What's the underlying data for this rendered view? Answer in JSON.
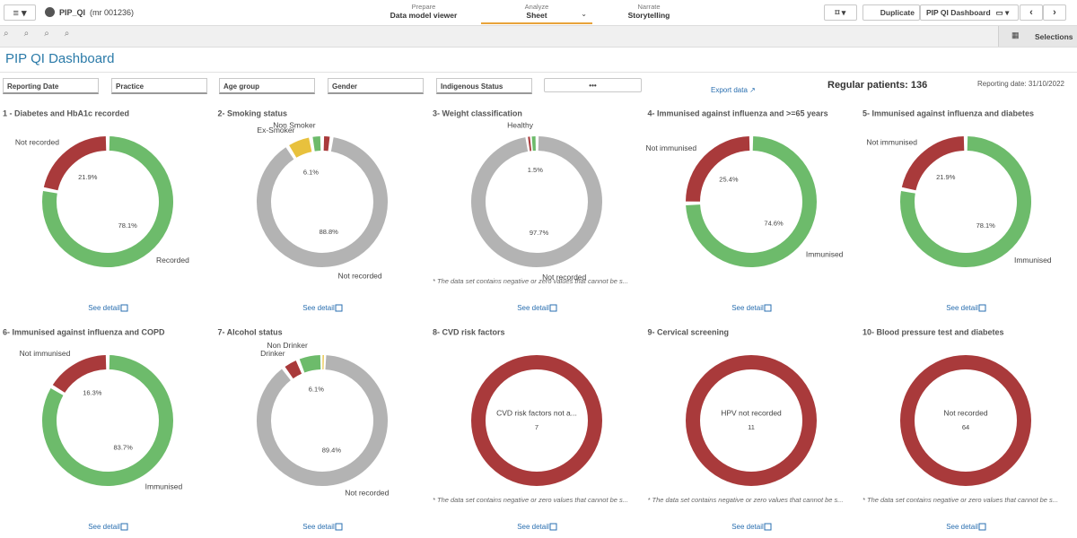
{
  "app": {
    "name": "PIP_QI",
    "id": "(mr 001236)"
  },
  "tabs": [
    {
      "label": "Prepare",
      "item": "Data model viewer"
    },
    {
      "label": "Analyze",
      "item": "Sheet"
    },
    {
      "label": "Narrate",
      "item": "Storytelling"
    }
  ],
  "buttons": {
    "duplicate": "Duplicate",
    "sheet": "PIP QI Dashboard",
    "selections": "Selections"
  },
  "sheet_title": "PIP QI Dashboard",
  "filters": [
    "Reporting Date",
    "Practice",
    "Age group",
    "Gender",
    "Indigenous Status"
  ],
  "more_button": "•••",
  "export": "Export data",
  "patients": "Regular patients: 136",
  "reporting_date": "Reporting date: 31/10/2022",
  "chart_data": [
    {
      "type": "pie",
      "title": "1 - Diabetes and HbA1c recorded",
      "categories": [
        "Recorded",
        "Not recorded"
      ],
      "values": [
        78.1,
        21.9
      ],
      "value_labels": [
        "78.1%",
        "21.9%"
      ],
      "colors": [
        "#6dbb6b",
        "#a93a3b"
      ],
      "link": "See detail"
    },
    {
      "type": "pie",
      "title": "2- Smoking status",
      "categories": [
        null,
        "Not recorded",
        "Ex-Smoker",
        "Non Smoker"
      ],
      "values": [
        2.3,
        88.8,
        6.1,
        2.8
      ],
      "value_labels": [
        null,
        "88.8%",
        "6.1%",
        null
      ],
      "colors": [
        "#a93a3b",
        "#b3b3b3",
        "#e8c13d",
        "#6dbb6b"
      ],
      "link": "See detail"
    },
    {
      "type": "pie",
      "title": "3- Weight classification",
      "categories": [
        "Not recorded",
        null,
        "Healthy"
      ],
      "values": [
        97.7,
        0.8,
        1.5
      ],
      "value_labels": [
        "97.7%",
        null,
        "1.5%"
      ],
      "colors": [
        "#b3b3b3",
        "#a93a3b",
        "#6dbb6b"
      ],
      "link": "See detail",
      "footnote": "* The data set contains negative or zero values that cannot be s..."
    },
    {
      "type": "pie",
      "title": "4- Immunised against influenza and >=65 years",
      "categories": [
        "Immunised",
        "Not immunised"
      ],
      "values": [
        74.6,
        25.4
      ],
      "value_labels": [
        "74.6%",
        "25.4%"
      ],
      "colors": [
        "#6dbb6b",
        "#a93a3b"
      ],
      "link": "See detail"
    },
    {
      "type": "pie",
      "title": "5- Immunised against influenza and diabetes",
      "categories": [
        "Immunised",
        "Not immunised"
      ],
      "values": [
        78.1,
        21.9
      ],
      "value_labels": [
        "78.1%",
        "21.9%"
      ],
      "colors": [
        "#6dbb6b",
        "#a93a3b"
      ],
      "link": "See detail"
    },
    {
      "type": "pie",
      "title": "6- Immunised against influenza and COPD",
      "categories": [
        "Immunised",
        "Not immunised"
      ],
      "values": [
        83.7,
        16.3
      ],
      "value_labels": [
        "83.7%",
        "16.3%"
      ],
      "colors": [
        "#6dbb6b",
        "#a93a3b"
      ],
      "link": "See detail"
    },
    {
      "type": "pie",
      "title": "7- Alcohol status",
      "categories": [
        null,
        "Not recorded",
        "Drinker",
        "Non Drinker"
      ],
      "values": [
        0.5,
        89.4,
        4.0,
        6.1
      ],
      "value_labels": [
        null,
        "89.4%",
        null,
        "6.1%"
      ],
      "colors": [
        "#e8c13d",
        "#b3b3b3",
        "#a93a3b",
        "#6dbb6b"
      ],
      "link": "See detail"
    },
    {
      "type": "pie",
      "title": "8- CVD risk factors",
      "categories": [
        "CVD risk factors not a..."
      ],
      "values": [
        7
      ],
      "colors": [
        "#a93a3b"
      ],
      "link": "See detail",
      "footnote": "* The data set contains negative or zero values that cannot be s..."
    },
    {
      "type": "pie",
      "title": "9- Cervical screening",
      "categories": [
        "HPV not recorded"
      ],
      "values": [
        11
      ],
      "colors": [
        "#a93a3b"
      ],
      "link": "See detail",
      "footnote": "* The data set contains negative or zero values that cannot be s..."
    },
    {
      "type": "pie",
      "title": "10- Blood pressure test and diabetes",
      "categories": [
        "Not recorded"
      ],
      "values": [
        64
      ],
      "colors": [
        "#a93a3b"
      ],
      "link": "See detail",
      "footnote": "* The data set contains negative or zero values that cannot be s..."
    }
  ]
}
